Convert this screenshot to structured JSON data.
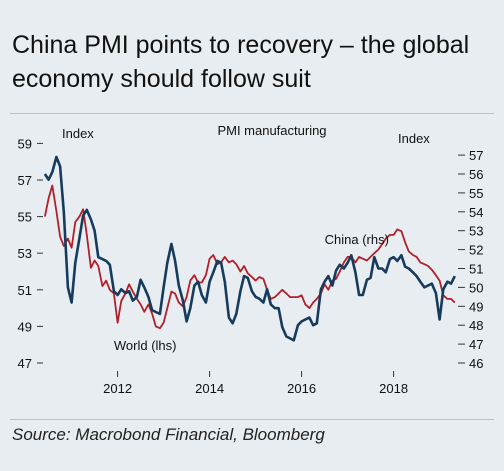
{
  "title": "China PMI points to recovery – the global economy should follow suit",
  "source": "Source: Macrobond Financial, Bloomberg",
  "chart_data": {
    "type": "line",
    "subtitle": "PMI manufacturing",
    "left_axis_label": "Index",
    "right_axis_label": "Index",
    "left_ylim": [
      47,
      59.5
    ],
    "right_ylim": [
      46,
      57
    ],
    "left_ticks": [
      47,
      49,
      51,
      53,
      55,
      57,
      59
    ],
    "right_ticks": [
      46,
      47,
      48,
      49,
      50,
      51,
      52,
      53,
      54,
      55,
      56,
      57
    ],
    "xlim": [
      2010.4,
      2019.4
    ],
    "x_ticks": [
      2012,
      2014,
      2016,
      2018
    ],
    "colors": {
      "China": "#163b5c",
      "World": "#b0202a"
    },
    "grid": false,
    "series": [
      {
        "name": "World (lhs)",
        "axis": "left",
        "points": [
          [
            2010.42,
            55.0
          ],
          [
            2010.5,
            56.0
          ],
          [
            2010.58,
            56.7
          ],
          [
            2010.67,
            55.3
          ],
          [
            2010.75,
            53.9
          ],
          [
            2010.83,
            53.4
          ],
          [
            2010.92,
            53.8
          ],
          [
            2011.0,
            53.3
          ],
          [
            2011.08,
            54.7
          ],
          [
            2011.17,
            55.0
          ],
          [
            2011.25,
            55.4
          ],
          [
            2011.33,
            54.0
          ],
          [
            2011.42,
            52.2
          ],
          [
            2011.5,
            52.6
          ],
          [
            2011.58,
            52.3
          ],
          [
            2011.67,
            51.2
          ],
          [
            2011.75,
            51.5
          ],
          [
            2011.83,
            51.0
          ],
          [
            2011.92,
            50.8
          ],
          [
            2012.0,
            49.2
          ],
          [
            2012.08,
            50.4
          ],
          [
            2012.17,
            50.8
          ],
          [
            2012.25,
            51.3
          ],
          [
            2012.33,
            50.9
          ],
          [
            2012.42,
            50.5
          ],
          [
            2012.5,
            50.2
          ],
          [
            2012.58,
            49.8
          ],
          [
            2012.67,
            50.2
          ],
          [
            2012.75,
            49.7
          ],
          [
            2012.83,
            49.0
          ],
          [
            2012.92,
            48.9
          ],
          [
            2013.0,
            49.2
          ],
          [
            2013.08,
            50.0
          ],
          [
            2013.17,
            50.9
          ],
          [
            2013.25,
            50.8
          ],
          [
            2013.33,
            50.3
          ],
          [
            2013.42,
            50.1
          ],
          [
            2013.5,
            50.6
          ],
          [
            2013.58,
            51.5
          ],
          [
            2013.67,
            51.8
          ],
          [
            2013.75,
            51.4
          ],
          [
            2013.83,
            51.4
          ],
          [
            2013.92,
            51.8
          ],
          [
            2014.0,
            52.7
          ],
          [
            2014.08,
            52.9
          ],
          [
            2014.17,
            52.4
          ],
          [
            2014.25,
            52.5
          ],
          [
            2014.33,
            52.8
          ],
          [
            2014.42,
            52.5
          ],
          [
            2014.5,
            52.6
          ],
          [
            2014.58,
            52.4
          ],
          [
            2014.67,
            52.0
          ],
          [
            2014.75,
            52.3
          ],
          [
            2014.83,
            51.9
          ],
          [
            2014.92,
            51.7
          ],
          [
            2015.0,
            51.5
          ],
          [
            2015.08,
            51.7
          ],
          [
            2015.17,
            51.6
          ],
          [
            2015.25,
            51.0
          ],
          [
            2015.33,
            50.5
          ],
          [
            2015.42,
            50.6
          ],
          [
            2015.5,
            50.8
          ],
          [
            2015.58,
            51.0
          ],
          [
            2015.67,
            50.8
          ],
          [
            2015.75,
            50.6
          ],
          [
            2015.83,
            50.6
          ],
          [
            2015.92,
            50.6
          ],
          [
            2016.0,
            50.7
          ],
          [
            2016.08,
            50.2
          ],
          [
            2016.17,
            50.0
          ],
          [
            2016.25,
            50.3
          ],
          [
            2016.33,
            50.5
          ],
          [
            2016.42,
            50.8
          ],
          [
            2016.5,
            51.3
          ],
          [
            2016.58,
            51.0
          ],
          [
            2016.67,
            51.5
          ],
          [
            2016.75,
            51.6
          ],
          [
            2016.83,
            52.0
          ],
          [
            2016.92,
            52.5
          ],
          [
            2017.0,
            52.8
          ],
          [
            2017.08,
            52.8
          ],
          [
            2017.17,
            52.5
          ],
          [
            2017.25,
            52.8
          ],
          [
            2017.33,
            52.7
          ],
          [
            2017.42,
            52.6
          ],
          [
            2017.5,
            52.8
          ],
          [
            2017.58,
            53.0
          ],
          [
            2017.67,
            53.2
          ],
          [
            2017.75,
            53.5
          ],
          [
            2017.83,
            53.8
          ],
          [
            2017.92,
            54.0
          ],
          [
            2018.0,
            54.0
          ],
          [
            2018.08,
            54.3
          ],
          [
            2018.17,
            54.2
          ],
          [
            2018.25,
            53.6
          ],
          [
            2018.33,
            53.1
          ],
          [
            2018.42,
            52.9
          ],
          [
            2018.5,
            52.8
          ],
          [
            2018.58,
            52.5
          ],
          [
            2018.67,
            52.4
          ],
          [
            2018.75,
            52.3
          ],
          [
            2018.83,
            52.1
          ],
          [
            2018.92,
            51.8
          ],
          [
            2019.0,
            51.5
          ],
          [
            2019.08,
            50.7
          ],
          [
            2019.17,
            50.5
          ],
          [
            2019.25,
            50.5
          ],
          [
            2019.33,
            50.3
          ]
        ]
      },
      {
        "name": "China (rhs)",
        "axis": "right",
        "points": [
          [
            2010.42,
            56.0
          ],
          [
            2010.5,
            55.7
          ],
          [
            2010.58,
            56.1
          ],
          [
            2010.67,
            56.9
          ],
          [
            2010.75,
            56.4
          ],
          [
            2010.83,
            54.0
          ],
          [
            2010.92,
            50.0
          ],
          [
            2011.0,
            49.2
          ],
          [
            2011.08,
            51.3
          ],
          [
            2011.17,
            52.6
          ],
          [
            2011.25,
            53.8
          ],
          [
            2011.33,
            54.1
          ],
          [
            2011.42,
            53.6
          ],
          [
            2011.5,
            53.0
          ],
          [
            2011.58,
            51.6
          ],
          [
            2011.67,
            51.5
          ],
          [
            2011.75,
            51.4
          ],
          [
            2011.83,
            51.2
          ],
          [
            2011.92,
            49.8
          ],
          [
            2012.0,
            49.6
          ],
          [
            2012.08,
            49.9
          ],
          [
            2012.17,
            49.7
          ],
          [
            2012.25,
            49.8
          ],
          [
            2012.33,
            49.3
          ],
          [
            2012.42,
            49.5
          ],
          [
            2012.5,
            50.4
          ],
          [
            2012.58,
            50.0
          ],
          [
            2012.67,
            49.5
          ],
          [
            2012.75,
            48.8
          ],
          [
            2012.83,
            48.7
          ],
          [
            2012.92,
            48.6
          ],
          [
            2013.0,
            50.0
          ],
          [
            2013.08,
            51.3
          ],
          [
            2013.17,
            52.3
          ],
          [
            2013.25,
            51.4
          ],
          [
            2013.33,
            50.1
          ],
          [
            2013.42,
            49.3
          ],
          [
            2013.5,
            48.2
          ],
          [
            2013.58,
            48.9
          ],
          [
            2013.67,
            50.1
          ],
          [
            2013.75,
            50.3
          ],
          [
            2013.83,
            49.6
          ],
          [
            2013.92,
            49.2
          ],
          [
            2014.0,
            50.3
          ],
          [
            2014.08,
            50.8
          ],
          [
            2014.17,
            51.4
          ],
          [
            2014.25,
            51.3
          ],
          [
            2014.33,
            50.3
          ],
          [
            2014.42,
            48.4
          ],
          [
            2014.5,
            48.1
          ],
          [
            2014.58,
            48.6
          ],
          [
            2014.67,
            49.8
          ],
          [
            2014.75,
            50.6
          ],
          [
            2014.83,
            50.5
          ],
          [
            2014.92,
            49.8
          ],
          [
            2015.0,
            49.5
          ],
          [
            2015.08,
            49.4
          ],
          [
            2015.17,
            49.2
          ],
          [
            2015.25,
            49.9
          ],
          [
            2015.33,
            49.1
          ],
          [
            2015.42,
            48.9
          ],
          [
            2015.5,
            48.9
          ],
          [
            2015.58,
            47.9
          ],
          [
            2015.67,
            47.4
          ],
          [
            2015.75,
            47.3
          ],
          [
            2015.83,
            47.2
          ],
          [
            2015.92,
            48.0
          ],
          [
            2016.0,
            48.2
          ],
          [
            2016.08,
            48.3
          ],
          [
            2016.17,
            48.4
          ],
          [
            2016.25,
            48.0
          ],
          [
            2016.33,
            48.1
          ],
          [
            2016.42,
            49.9
          ],
          [
            2016.5,
            50.3
          ],
          [
            2016.58,
            50.6
          ],
          [
            2016.67,
            50.1
          ],
          [
            2016.75,
            50.9
          ],
          [
            2016.83,
            51.2
          ],
          [
            2016.92,
            51.0
          ],
          [
            2017.0,
            51.3
          ],
          [
            2017.08,
            51.7
          ],
          [
            2017.17,
            50.8
          ],
          [
            2017.25,
            49.6
          ],
          [
            2017.33,
            49.6
          ],
          [
            2017.42,
            50.4
          ],
          [
            2017.5,
            50.5
          ],
          [
            2017.58,
            51.6
          ],
          [
            2017.67,
            51.0
          ],
          [
            2017.75,
            51.0
          ],
          [
            2017.83,
            50.8
          ],
          [
            2017.92,
            51.5
          ],
          [
            2018.0,
            51.6
          ],
          [
            2018.08,
            51.4
          ],
          [
            2018.17,
            51.7
          ],
          [
            2018.25,
            51.1
          ],
          [
            2018.33,
            51.0
          ],
          [
            2018.42,
            50.8
          ],
          [
            2018.5,
            50.6
          ],
          [
            2018.58,
            50.3
          ],
          [
            2018.67,
            50.0
          ],
          [
            2018.75,
            50.1
          ],
          [
            2018.83,
            50.2
          ],
          [
            2018.92,
            49.7
          ],
          [
            2019.0,
            48.3
          ],
          [
            2019.08,
            49.9
          ],
          [
            2019.17,
            50.3
          ],
          [
            2019.25,
            50.2
          ],
          [
            2019.33,
            50.6
          ]
        ]
      }
    ],
    "annotations": [
      {
        "text": "China (rhs)",
        "series": "China",
        "at": [
          2017.2,
          52.3
        ],
        "axis": "right"
      },
      {
        "text": "World (lhs)",
        "series": "World",
        "at": [
          2012.6,
          47.7
        ],
        "axis": "left"
      }
    ]
  }
}
